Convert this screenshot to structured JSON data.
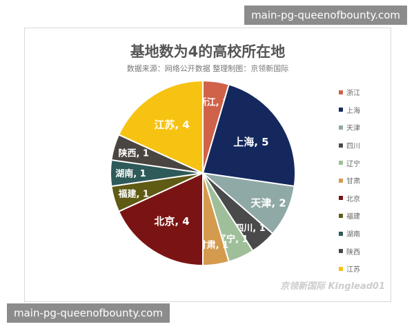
{
  "watermarks": {
    "top": "main-pg-queenofbounty.com",
    "bottom": "main-pg-queenofbounty.com"
  },
  "chart_watermark": "京领新国际 Kinglead01",
  "chart_data": {
    "type": "pie",
    "title": "基地数为4的高校所在地",
    "subtitle": "数据来源：网络公开数据 整理制图：京领新国际",
    "categories": [
      "浙江",
      "上海",
      "天津",
      "四川",
      "辽宁",
      "甘肃",
      "北京",
      "福建",
      "湖南",
      "陕西",
      "江苏"
    ],
    "values": [
      1,
      5,
      2,
      1,
      1,
      1,
      4,
      1,
      1,
      1,
      4
    ],
    "colors": [
      "#d0624a",
      "#14285e",
      "#8fa9a6",
      "#4a4a4a",
      "#9fbf9a",
      "#d49a4e",
      "#7a1414",
      "#5f5a14",
      "#2f5a5a",
      "#4a4540",
      "#f7c312"
    ],
    "legend": "right",
    "data_labels": [
      "浙江, 1",
      "上海, 5",
      "天津, 2",
      "四川, 1",
      "辽宁, 1",
      "甘肃, 1",
      "北京, 4",
      "福建, 1",
      "湖南, 1",
      "陕西, 1",
      "江苏, 4"
    ]
  }
}
